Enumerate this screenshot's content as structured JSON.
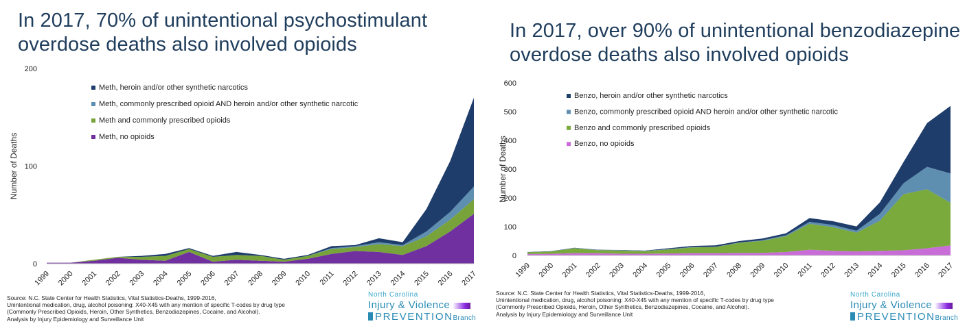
{
  "left": {
    "headline": "In 2017, 70% of unintentional psychostimulant overdose deaths also involved opioids",
    "source_lines": [
      "Source: N.C. State Center for Health Statistics, Vital Statistics-Deaths, 1999-2016,",
      "Unintentional medication, drug, alcohol poisoning: X40-X45 with any mention of specific T-codes by drug type",
      "(Commonly Prescribed Opioids, Heroin, Other Synthetics, Benzodiazepines, Cocaine, and Alcohol).",
      "Analysis by Injury Epidemiology and Surveillance Unit"
    ],
    "logo": {
      "line1": "North Carolina",
      "line2": "Injury & Violence",
      "line3": "PREVENTION",
      "line3_suffix": "Branch"
    }
  },
  "right": {
    "headline": "In 2017, over 90% of unintentional benzodiazepine overdose deaths also involved opioids",
    "source_lines": [
      "Source: N.C. State Center for Health Statistics, Vital Statistics-Deaths, 1999-2016,",
      "Unintentional medication, drug, alcohol poisoning: X40-X45 with any mention of specific T-codes by drug type",
      "(Commonly Prescribed Opioids, Heroin, Other Synthetics, Benzodiazepines, Cocaine, and Alcohol).",
      "Analysis by Injury Epidemiology and Surveillance Unit"
    ],
    "logo": {
      "line1": "North Carolina",
      "line2": "Injury & Violence",
      "line3": "PREVENTION",
      "line3_suffix": "Branch"
    }
  },
  "chart_data": [
    {
      "type": "area",
      "stacked": true,
      "title": "In 2017, 70% of unintentional psychostimulant overdose deaths also involved opioids",
      "ylabel": "Number of Deaths",
      "ylim": [
        0,
        200
      ],
      "yticks": [
        0,
        100,
        200
      ],
      "grid": false,
      "legend_position": "top-left",
      "x": [
        "1999",
        "2000",
        "2001",
        "2002",
        "2003",
        "2004",
        "2005",
        "2006",
        "2007",
        "2008",
        "2009",
        "2010",
        "2011",
        "2012",
        "2013",
        "2014",
        "2015",
        "2016",
        "2017"
      ],
      "series": [
        {
          "name": "Meth, no opioids",
          "color": "#7030a0",
          "values": [
            1,
            1,
            3,
            6,
            4,
            3,
            12,
            2,
            4,
            3,
            2,
            5,
            10,
            13,
            12,
            9,
            18,
            33,
            51
          ]
        },
        {
          "name": "Meth and commonly prescribed opioids",
          "color": "#77a33a",
          "values": [
            0,
            0,
            1,
            1,
            3,
            5,
            3,
            5,
            5,
            5,
            2,
            3,
            5,
            4,
            8,
            9,
            10,
            12,
            15
          ]
        },
        {
          "name": "Meth, commonly prescribed opioid AND heroin and/or other synthetic narcotic",
          "color": "#5f8fb0",
          "values": [
            0,
            0,
            0,
            0,
            0,
            0,
            0,
            0,
            0,
            0,
            0,
            0,
            1,
            1,
            2,
            1,
            5,
            8,
            13
          ]
        },
        {
          "name": "Meth, heroin and/or other synthetic narcotics",
          "color": "#1f3d6b",
          "values": [
            0,
            0,
            0,
            0,
            1,
            2,
            1,
            1,
            3,
            1,
            1,
            1,
            2,
            1,
            4,
            3,
            23,
            52,
            91
          ]
        }
      ]
    },
    {
      "type": "area",
      "stacked": true,
      "title": "In 2017, over 90% of unintentional benzodiazepine overdose deaths also involved opioids",
      "ylabel": "Number of Deaths",
      "ylim": [
        0,
        600
      ],
      "yticks": [
        0,
        100,
        200,
        300,
        400,
        500,
        600
      ],
      "grid": false,
      "legend_position": "top-left",
      "x": [
        "1999",
        "2000",
        "2001",
        "2002",
        "2003",
        "2004",
        "2005",
        "2006",
        "2007",
        "2008",
        "2009",
        "2010",
        "2011",
        "2012",
        "2013",
        "2014",
        "2015",
        "2016",
        "2017"
      ],
      "series": [
        {
          "name": "Benzo, no opioids",
          "color": "#c86dd7",
          "values": [
            5,
            6,
            8,
            8,
            6,
            6,
            7,
            8,
            8,
            9,
            9,
            12,
            20,
            16,
            14,
            16,
            18,
            25,
            35
          ]
        },
        {
          "name": "Benzo and commonly prescribed opioids",
          "color": "#7aa93c",
          "values": [
            6,
            8,
            17,
            10,
            11,
            9,
            14,
            20,
            21,
            35,
            42,
            55,
            90,
            82,
            65,
            105,
            195,
            205,
            148
          ]
        },
        {
          "name": "Benzo, commonly prescribed opioid AND heroin and/or other synthetic narcotic",
          "color": "#5f8fb0",
          "values": [
            0,
            0,
            1,
            1,
            1,
            1,
            1,
            1,
            1,
            1,
            2,
            3,
            7,
            8,
            7,
            24,
            38,
            78,
            102
          ]
        },
        {
          "name": "Benzo, heroin and/or other synthetic narcotics",
          "color": "#1f3d6b",
          "values": [
            1,
            1,
            1,
            1,
            1,
            1,
            3,
            4,
            5,
            5,
            6,
            7,
            13,
            13,
            15,
            40,
            74,
            152,
            235
          ]
        }
      ]
    }
  ]
}
